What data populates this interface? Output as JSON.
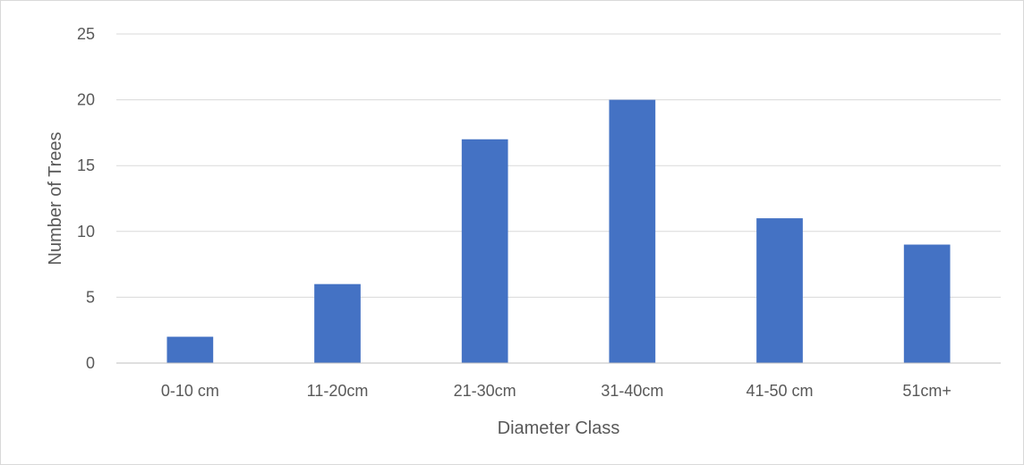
{
  "chart_data": {
    "type": "bar",
    "title": "",
    "xlabel": "Diameter Class",
    "ylabel": "Number of Trees",
    "categories": [
      "0-10 cm",
      "11-20cm",
      "21-30cm",
      "31-40cm",
      "41-50 cm",
      "51cm+"
    ],
    "values": [
      2,
      6,
      17,
      20,
      11,
      9
    ],
    "ylim": [
      0,
      25
    ],
    "yticks": [
      0,
      5,
      10,
      15,
      20,
      25
    ],
    "grid": true,
    "legend": "none",
    "bar_color": "#4472C4"
  }
}
